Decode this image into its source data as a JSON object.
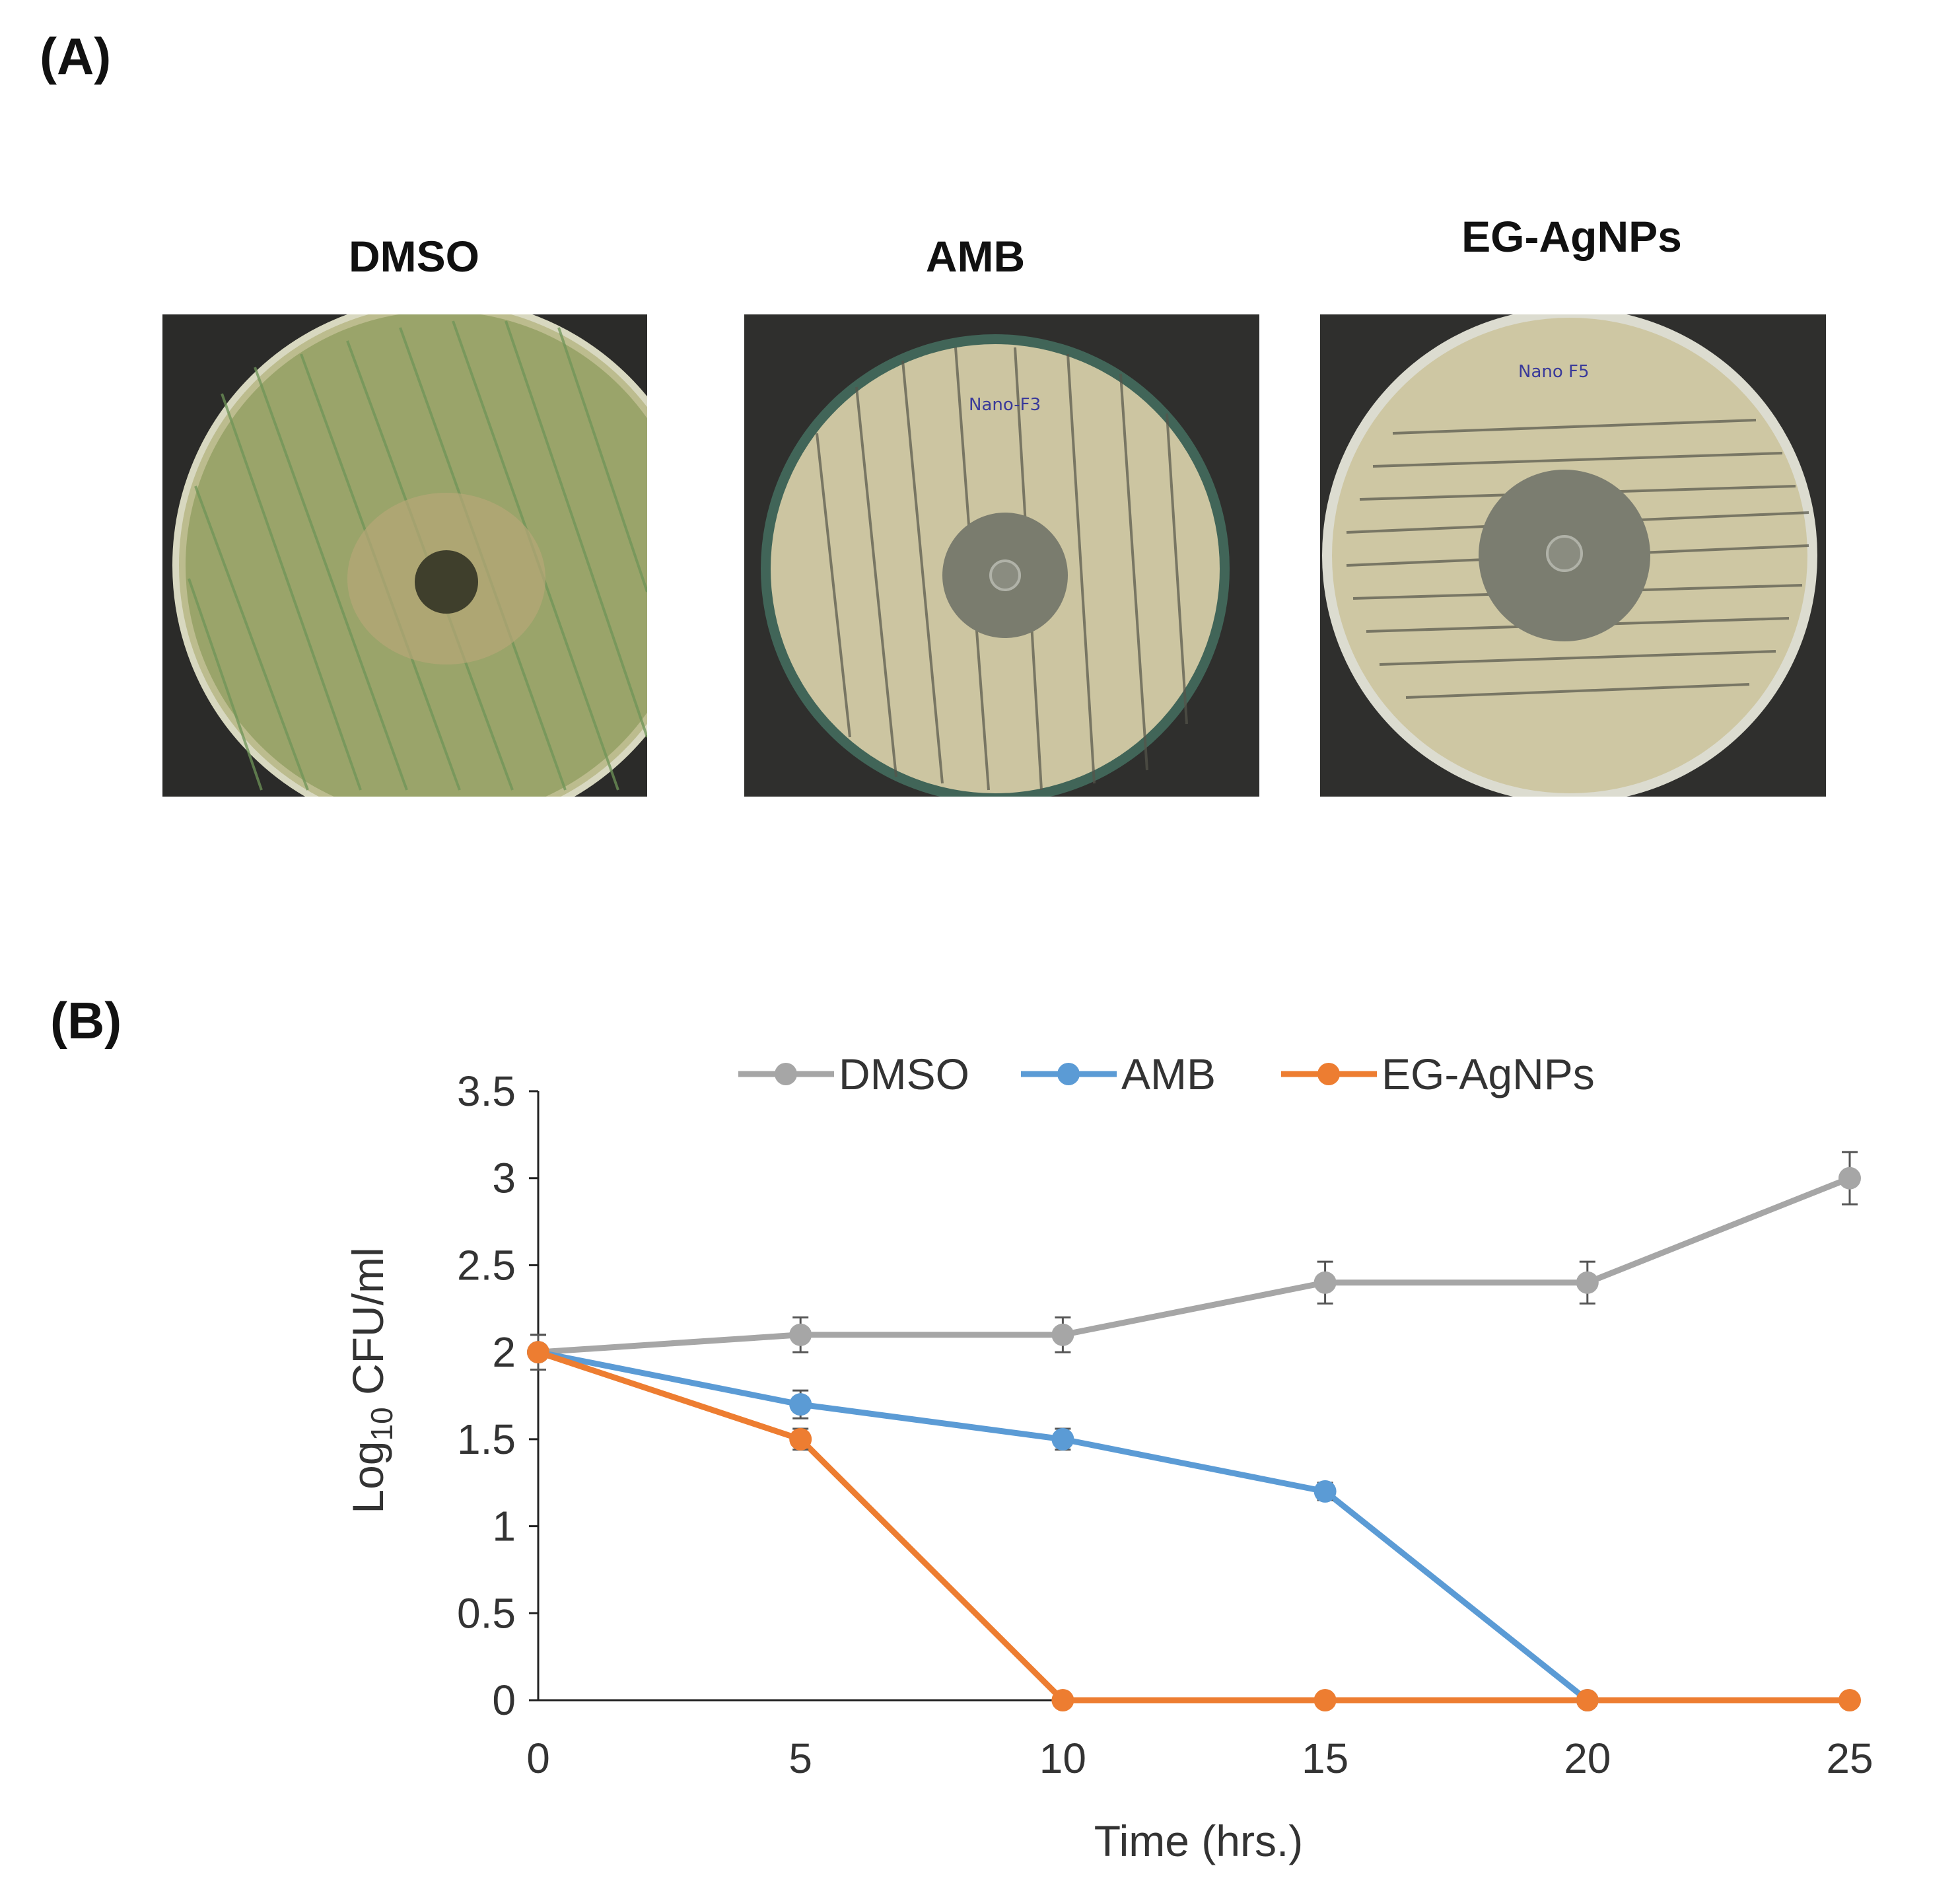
{
  "panels": {
    "a_label": "(A)",
    "b_label": "(B)"
  },
  "plates": [
    {
      "title": "DMSO",
      "handwriting": "",
      "agar": "#b8b88a",
      "growth": "#6c8f52",
      "inhibition_zone": "small"
    },
    {
      "title": "AMB",
      "handwriting": "Nano-F3",
      "agar": "#cfc8a4",
      "growth": "#5a5a48",
      "inhibition_zone": "medium"
    },
    {
      "title": "EG-AgNPs",
      "handwriting": "Nano F5",
      "agar": "#cfc8a4",
      "growth": "#5a5a48",
      "inhibition_zone": "large"
    }
  ],
  "chart_data": {
    "type": "line",
    "xlabel": "Time (hrs.)",
    "ylabel_main": "Log",
    "ylabel_sub": "10",
    "ylabel_rest": " CFU/ml",
    "x": [
      0,
      5,
      10,
      15,
      20,
      25
    ],
    "xticks": [
      "0",
      "5",
      "10",
      "15",
      "20",
      "25"
    ],
    "yticks": [
      "0",
      "0.5",
      "1",
      "1.5",
      "2",
      "2.5",
      "3",
      "3.5"
    ],
    "xlim": [
      0,
      25
    ],
    "ylim": [
      0,
      3.5
    ],
    "grid": false,
    "legend_position": "top",
    "series": [
      {
        "name": "DMSO",
        "color": "#a6a6a6",
        "values": [
          2.0,
          2.1,
          2.1,
          2.4,
          2.4,
          3.0
        ],
        "errors": [
          0.1,
          0.1,
          0.1,
          0.12,
          0.12,
          0.15
        ]
      },
      {
        "name": "AMB",
        "color": "#5b9bd5",
        "values": [
          2.0,
          1.7,
          1.5,
          1.2,
          0,
          null
        ],
        "errors": [
          0.1,
          0.08,
          0.06,
          0.05,
          0,
          null
        ]
      },
      {
        "name": "EG-AgNPs",
        "color": "#ed7d31",
        "values": [
          2.0,
          1.5,
          0,
          0,
          0,
          0
        ],
        "errors": [
          0.1,
          0.06,
          0,
          0,
          0,
          0
        ]
      }
    ]
  }
}
